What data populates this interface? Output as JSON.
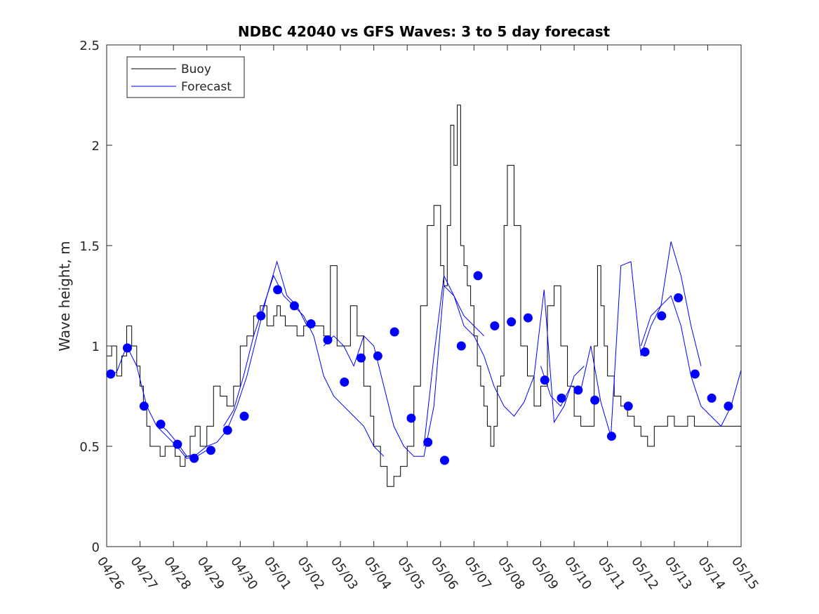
{
  "chart_data": {
    "type": "line",
    "title": "NDBC 42040 vs GFS Waves: 3 to 5 day forecast",
    "xlabel": "",
    "ylabel": "Wave height, m",
    "xlim": [
      0,
      19
    ],
    "ylim": [
      0,
      2.5
    ],
    "x_tick_labels": [
      "04/26",
      "04/27",
      "04/28",
      "04/29",
      "04/30",
      "05/01",
      "05/02",
      "05/03",
      "05/04",
      "05/05",
      "05/06",
      "05/07",
      "05/08",
      "05/09",
      "05/10",
      "05/11",
      "05/12",
      "05/13",
      "05/14",
      "05/15"
    ],
    "y_ticks": [
      0,
      0.5,
      1,
      1.5,
      2,
      2.5
    ],
    "y_tick_labels": [
      "0",
      "0.5",
      "1",
      "1.5",
      "2",
      "2.5"
    ],
    "grid": false,
    "legend_position": "top-left",
    "series": [
      {
        "name": "Buoy",
        "color": "#000000",
        "style": "step-line",
        "x": [
          0,
          0.15,
          0.3,
          0.45,
          0.6,
          0.75,
          0.9,
          1.0,
          1.1,
          1.2,
          1.3,
          1.45,
          1.6,
          1.75,
          1.9,
          2.05,
          2.2,
          2.35,
          2.5,
          2.65,
          2.8,
          3.0,
          3.2,
          3.4,
          3.6,
          3.8,
          4.0,
          4.2,
          4.4,
          4.6,
          4.8,
          5.0,
          5.1,
          5.2,
          5.35,
          5.5,
          5.7,
          5.9,
          6.1,
          6.3,
          6.5,
          6.7,
          6.9,
          7.1,
          7.3,
          7.5,
          7.7,
          7.9,
          8.0,
          8.2,
          8.4,
          8.6,
          8.8,
          9.0,
          9.2,
          9.4,
          9.6,
          9.8,
          10.0,
          10.1,
          10.2,
          10.3,
          10.4,
          10.5,
          10.6,
          10.7,
          10.8,
          10.9,
          11.0,
          11.1,
          11.2,
          11.3,
          11.4,
          11.5,
          11.6,
          11.7,
          11.8,
          11.9,
          12.0,
          12.2,
          12.4,
          12.6,
          12.8,
          13.0,
          13.2,
          13.4,
          13.6,
          13.8,
          14.0,
          14.2,
          14.4,
          14.6,
          14.7,
          14.8,
          14.9,
          15.0,
          15.2,
          15.4,
          15.6,
          15.8,
          16.0,
          16.2,
          16.4,
          16.6,
          16.8,
          17.0,
          17.2,
          17.4,
          17.6,
          17.8,
          18.0,
          18.2,
          18.4,
          18.6,
          18.8,
          19.0
        ],
        "y": [
          0.95,
          1.0,
          0.85,
          0.95,
          1.1,
          1.0,
          0.9,
          0.8,
          0.7,
          0.6,
          0.5,
          0.5,
          0.45,
          0.5,
          0.5,
          0.45,
          0.4,
          0.45,
          0.55,
          0.6,
          0.5,
          0.6,
          0.8,
          0.75,
          0.7,
          0.8,
          1.0,
          1.05,
          1.15,
          1.2,
          1.1,
          1.15,
          1.2,
          1.15,
          1.1,
          1.1,
          1.05,
          1.1,
          1.1,
          1.1,
          1.05,
          1.4,
          1.0,
          1.0,
          1.2,
          1.05,
          0.8,
          0.65,
          0.5,
          0.4,
          0.3,
          0.35,
          0.4,
          0.5,
          0.8,
          1.2,
          1.6,
          1.7,
          1.4,
          1.3,
          1.6,
          2.1,
          1.9,
          2.2,
          1.5,
          1.4,
          1.3,
          1.2,
          1.05,
          0.9,
          0.8,
          0.7,
          0.6,
          0.5,
          0.6,
          0.8,
          0.85,
          1.6,
          1.9,
          1.6,
          1.0,
          0.85,
          0.7,
          0.8,
          1.2,
          1.3,
          1.0,
          0.8,
          0.65,
          0.6,
          0.6,
          1.0,
          1.4,
          1.2,
          1.0,
          0.85,
          0.75,
          0.7,
          0.65,
          0.6,
          0.55,
          0.5,
          0.6,
          0.6,
          0.65,
          0.6,
          0.6,
          0.65,
          0.6,
          0.6,
          0.6,
          0.6,
          0.6,
          0.6,
          0.6,
          0.6
        ]
      },
      {
        "name": "Forecast",
        "color": "#0000ff",
        "style": "lines",
        "lines": [
          {
            "x": [
              0,
              0.3,
              0.6,
              0.9,
              1.2,
              1.5,
              1.8,
              2.1,
              2.4,
              2.7,
              3.0
            ],
            "y": [
              0.85,
              0.87,
              1.0,
              0.9,
              0.7,
              0.6,
              0.55,
              0.5,
              0.44,
              0.45,
              0.48
            ]
          },
          {
            "x": [
              1.5,
              1.8,
              2.1,
              2.4,
              2.7,
              3.0,
              3.3,
              3.6,
              3.9,
              4.2,
              4.5,
              4.8,
              5.1,
              5.4,
              5.7,
              6.0
            ],
            "y": [
              0.62,
              0.58,
              0.52,
              0.45,
              0.46,
              0.5,
              0.52,
              0.58,
              0.7,
              0.85,
              1.05,
              1.25,
              1.42,
              1.25,
              1.2,
              1.1
            ]
          },
          {
            "x": [
              3.5,
              3.8,
              4.1,
              4.4,
              4.7,
              5.0,
              5.3,
              5.6,
              5.9,
              6.2,
              6.5,
              6.8,
              7.1,
              7.4,
              7.7,
              8.0,
              8.3
            ],
            "y": [
              0.6,
              0.68,
              0.85,
              1.05,
              1.2,
              1.35,
              1.25,
              1.2,
              1.15,
              1.05,
              0.85,
              0.75,
              0.7,
              0.65,
              0.6,
              0.5,
              0.45
            ]
          },
          {
            "x": [
              6.5,
              6.8,
              7.1,
              7.4,
              7.7,
              8.0,
              8.3,
              8.6,
              8.9,
              9.2,
              9.5,
              9.8,
              10.1,
              10.4,
              10.7,
              11.0,
              11.3
            ],
            "y": [
              1.0,
              1.05,
              1.0,
              0.9,
              1.05,
              1.0,
              0.8,
              0.6,
              0.5,
              0.45,
              0.45,
              0.7,
              1.3,
              1.25,
              1.15,
              1.1,
              1.05
            ]
          },
          {
            "x": [
              9.5,
              9.8,
              10.1,
              10.4,
              10.7,
              11.0,
              11.3,
              11.6,
              11.9,
              12.2,
              12.5,
              12.8,
              13.1,
              13.4,
              13.7,
              14.0,
              14.3
            ],
            "y": [
              0.5,
              0.95,
              1.35,
              1.25,
              1.1,
              1.05,
              0.95,
              0.8,
              0.7,
              0.65,
              0.72,
              0.85,
              1.28,
              0.62,
              0.7,
              0.85,
              0.9
            ]
          },
          {
            "x": [
              13.0,
              13.3,
              13.6,
              13.9,
              14.2,
              14.5,
              14.8,
              15.1,
              15.4,
              15.7,
              16.0,
              16.3,
              16.6,
              16.9,
              17.2,
              17.5,
              17.8
            ],
            "y": [
              0.9,
              0.75,
              0.7,
              0.8,
              0.78,
              1.0,
              0.72,
              0.55,
              1.4,
              1.42,
              0.95,
              1.1,
              1.2,
              1.52,
              1.35,
              1.1,
              0.9
            ]
          },
          {
            "x": [
              16.0,
              16.3,
              16.6,
              16.9,
              17.2,
              17.5,
              17.8,
              18.1,
              18.4,
              18.7,
              19.0
            ],
            "y": [
              1.0,
              1.15,
              1.2,
              1.25,
              1.1,
              0.85,
              0.7,
              0.65,
              0.6,
              0.7,
              0.88
            ]
          }
        ],
        "markers_x": [
          0.12,
          0.62,
          1.12,
          1.62,
          2.12,
          2.62,
          3.12,
          3.62,
          4.12,
          4.62,
          5.12,
          5.62,
          6.12,
          6.62,
          7.12,
          7.62,
          8.12,
          8.62,
          9.12,
          9.62,
          10.12,
          10.62,
          11.12,
          11.62,
          12.12,
          12.62,
          13.12,
          13.62,
          14.12,
          14.62,
          15.12,
          15.62,
          16.12,
          16.62,
          17.12,
          17.62,
          18.12,
          18.62
        ],
        "markers_y": [
          0.86,
          0.99,
          0.7,
          0.61,
          0.51,
          0.44,
          0.48,
          0.58,
          0.65,
          1.15,
          1.28,
          1.2,
          1.11,
          1.03,
          0.82,
          0.94,
          0.95,
          1.07,
          0.64,
          0.52,
          0.43,
          1.0,
          1.35,
          1.1,
          1.12,
          1.14,
          0.83,
          0.74,
          0.78,
          0.73,
          0.55,
          0.7,
          0.97,
          1.15,
          1.24,
          0.86,
          0.74,
          0.7
        ]
      }
    ]
  }
}
